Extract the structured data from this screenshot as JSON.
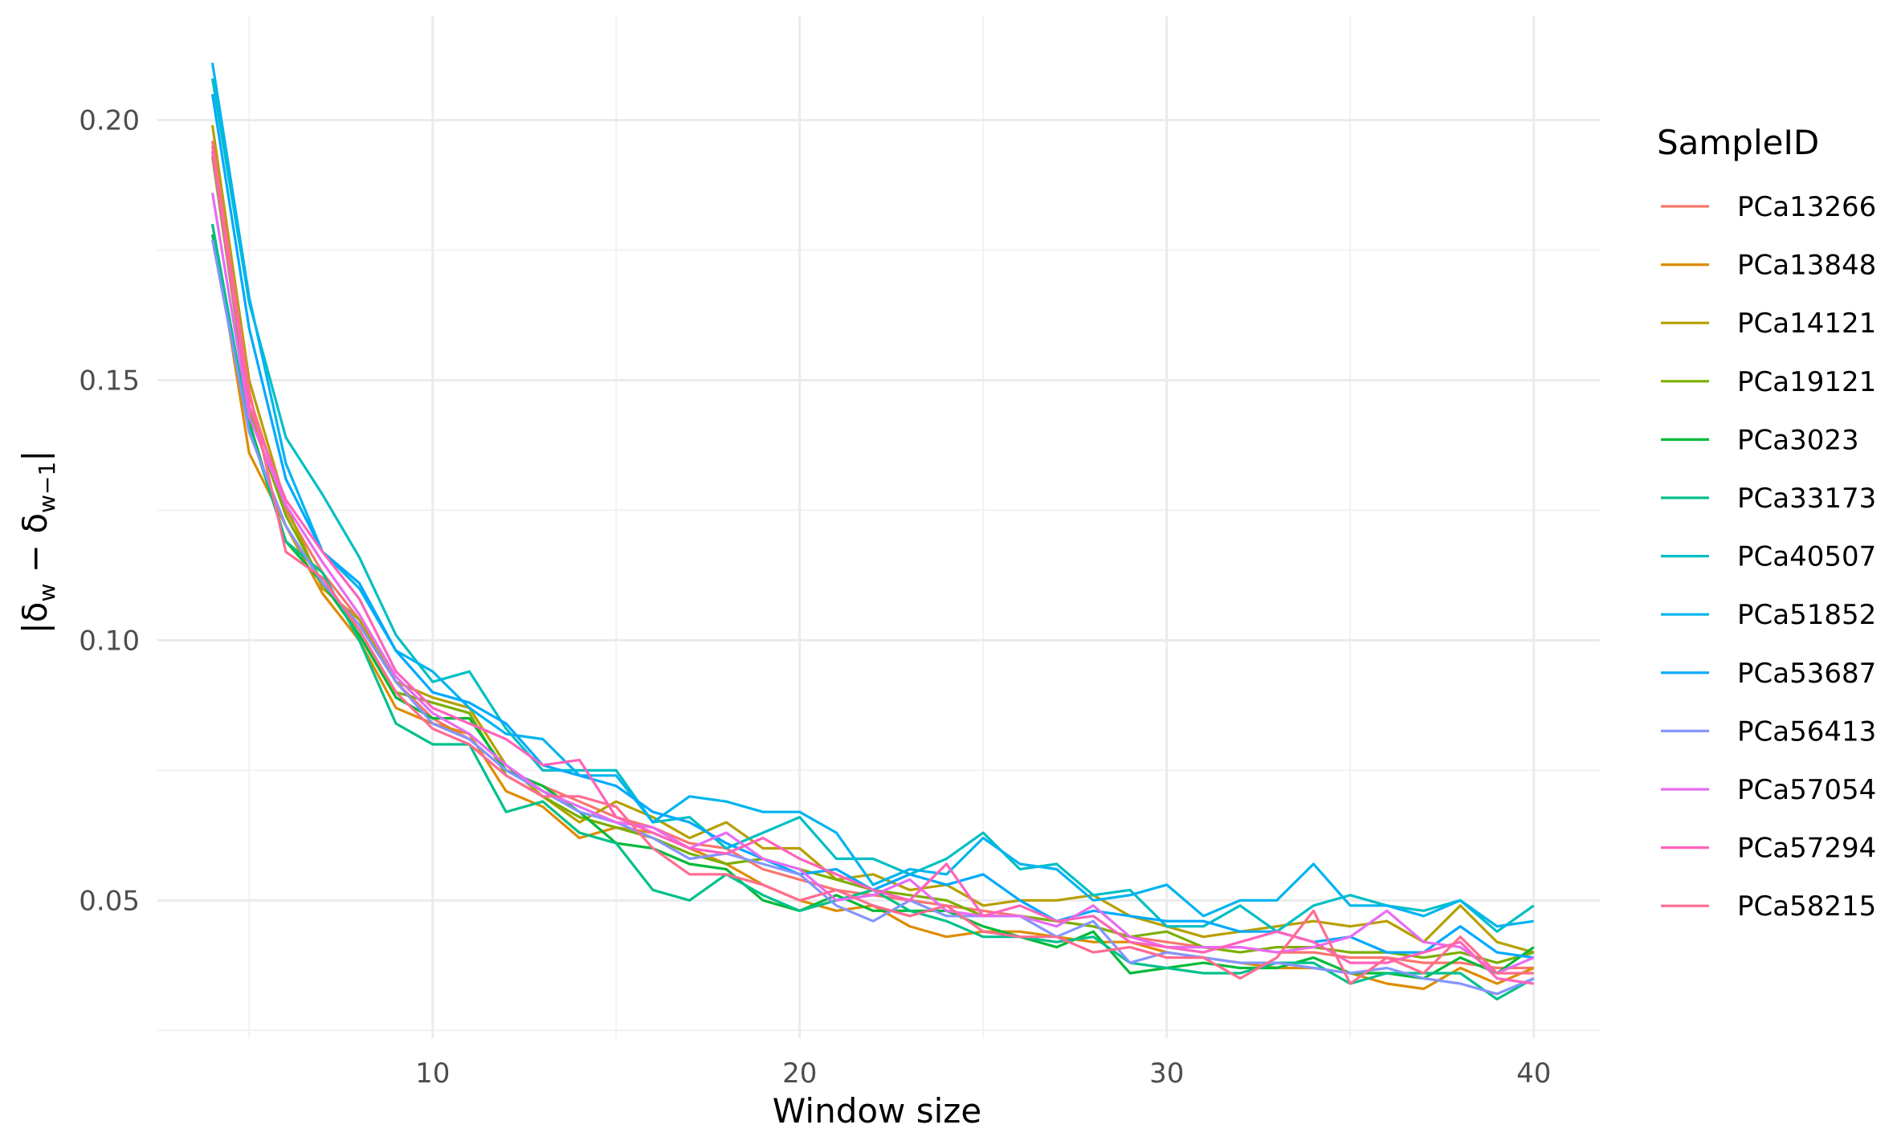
{
  "chart_data": {
    "type": "line",
    "xlabel": "Window size",
    "ylabel": "|δw − δw−1|",
    "ylabel_parts": {
      "open": "|δ",
      "sub1": "w",
      "minus": " − δ",
      "sub2": "w−1",
      "close": "|"
    },
    "xlim": [
      2.5,
      41.8
    ],
    "ylim": [
      0.0235,
      0.22
    ],
    "x_ticks": [
      10,
      20,
      30,
      40
    ],
    "x_tick_labels": [
      "10",
      "20",
      "30",
      "40"
    ],
    "x_minor_ticks": [
      5,
      15,
      25,
      35
    ],
    "y_ticks": [
      0.05,
      0.1,
      0.15,
      0.2
    ],
    "y_tick_labels": [
      "0.05",
      "0.10",
      "0.15",
      "0.20"
    ],
    "y_minor_ticks": [
      0.025,
      0.075,
      0.125,
      0.175
    ],
    "grid": true,
    "legend": {
      "title": "SampleID",
      "position": "right"
    },
    "x": [
      4,
      5,
      6,
      7,
      8,
      9,
      10,
      11,
      12,
      13,
      14,
      15,
      16,
      17,
      18,
      19,
      20,
      21,
      22,
      23,
      24,
      25,
      26,
      27,
      28,
      29,
      30,
      31,
      32,
      33,
      34,
      35,
      36,
      37,
      38,
      39,
      40
    ],
    "series": [
      {
        "name": "PCa13266",
        "color": "#F8766D",
        "values": [
          0.195,
          0.147,
          0.125,
          0.113,
          0.104,
          0.092,
          0.085,
          0.081,
          0.075,
          0.072,
          0.069,
          0.066,
          0.064,
          0.061,
          0.06,
          0.056,
          0.054,
          0.052,
          0.051,
          0.05,
          0.049,
          0.048,
          0.047,
          0.046,
          0.045,
          0.043,
          0.042,
          0.041,
          0.041,
          0.04,
          0.04,
          0.039,
          0.039,
          0.038,
          0.038,
          0.037,
          0.037
        ]
      },
      {
        "name": "PCa13848",
        "color": "#DE8C00",
        "values": [
          0.18,
          0.136,
          0.122,
          0.109,
          0.1,
          0.087,
          0.084,
          0.082,
          0.071,
          0.068,
          0.062,
          0.064,
          0.063,
          0.06,
          0.057,
          0.053,
          0.05,
          0.048,
          0.049,
          0.045,
          0.043,
          0.044,
          0.044,
          0.043,
          0.042,
          0.042,
          0.04,
          0.039,
          0.038,
          0.037,
          0.037,
          0.036,
          0.034,
          0.033,
          0.037,
          0.034,
          0.037
        ]
      },
      {
        "name": "PCa14121",
        "color": "#B79F00",
        "values": [
          0.199,
          0.15,
          0.126,
          0.11,
          0.104,
          0.092,
          0.089,
          0.087,
          0.076,
          0.07,
          0.065,
          0.069,
          0.066,
          0.062,
          0.065,
          0.06,
          0.06,
          0.054,
          0.055,
          0.052,
          0.053,
          0.049,
          0.05,
          0.05,
          0.051,
          0.047,
          0.045,
          0.043,
          0.044,
          0.045,
          0.046,
          0.045,
          0.046,
          0.042,
          0.049,
          0.042,
          0.04
        ]
      },
      {
        "name": "PCa19121",
        "color": "#7CAE00",
        "values": [
          0.193,
          0.144,
          0.124,
          0.111,
          0.102,
          0.09,
          0.088,
          0.086,
          0.074,
          0.07,
          0.066,
          0.064,
          0.062,
          0.059,
          0.057,
          0.058,
          0.056,
          0.054,
          0.052,
          0.051,
          0.05,
          0.047,
          0.047,
          0.046,
          0.045,
          0.043,
          0.044,
          0.041,
          0.04,
          0.041,
          0.041,
          0.04,
          0.04,
          0.039,
          0.04,
          0.038,
          0.04
        ]
      },
      {
        "name": "PCa3023",
        "color": "#00BA38",
        "values": [
          0.178,
          0.142,
          0.119,
          0.111,
          0.101,
          0.089,
          0.085,
          0.085,
          0.075,
          0.072,
          0.067,
          0.061,
          0.06,
          0.057,
          0.056,
          0.05,
          0.048,
          0.051,
          0.048,
          0.048,
          0.048,
          0.045,
          0.043,
          0.041,
          0.044,
          0.036,
          0.037,
          0.038,
          0.037,
          0.037,
          0.039,
          0.036,
          0.036,
          0.035,
          0.039,
          0.036,
          0.041
        ]
      },
      {
        "name": "PCa33173",
        "color": "#00C08B",
        "values": [
          0.18,
          0.141,
          0.119,
          0.113,
          0.1,
          0.084,
          0.08,
          0.08,
          0.067,
          0.069,
          0.063,
          0.061,
          0.052,
          0.05,
          0.055,
          0.051,
          0.048,
          0.05,
          0.052,
          0.048,
          0.046,
          0.043,
          0.043,
          0.042,
          0.043,
          0.038,
          0.037,
          0.036,
          0.036,
          0.038,
          0.038,
          0.034,
          0.036,
          0.036,
          0.036,
          0.031,
          0.035
        ]
      },
      {
        "name": "PCa40507",
        "color": "#00BFC4",
        "values": [
          0.208,
          0.165,
          0.139,
          0.128,
          0.116,
          0.101,
          0.092,
          0.094,
          0.083,
          0.075,
          0.075,
          0.075,
          0.065,
          0.066,
          0.06,
          0.063,
          0.066,
          0.058,
          0.058,
          0.055,
          0.058,
          0.063,
          0.056,
          0.057,
          0.051,
          0.052,
          0.045,
          0.045,
          0.049,
          0.044,
          0.049,
          0.051,
          0.049,
          0.048,
          0.05,
          0.044,
          0.049
        ]
      },
      {
        "name": "PCa51852",
        "color": "#00B4F0",
        "values": [
          0.211,
          0.166,
          0.134,
          0.117,
          0.11,
          0.098,
          0.094,
          0.087,
          0.082,
          0.081,
          0.074,
          0.074,
          0.065,
          0.07,
          0.069,
          0.067,
          0.067,
          0.063,
          0.053,
          0.056,
          0.055,
          0.062,
          0.057,
          0.056,
          0.05,
          0.051,
          0.053,
          0.047,
          0.05,
          0.05,
          0.057,
          0.049,
          0.049,
          0.047,
          0.05,
          0.045,
          0.046
        ]
      },
      {
        "name": "PCa53687",
        "color": "#00A9FF",
        "values": [
          0.205,
          0.16,
          0.131,
          0.117,
          0.111,
          0.098,
          0.09,
          0.088,
          0.084,
          0.076,
          0.074,
          0.072,
          0.067,
          0.065,
          0.061,
          0.058,
          0.055,
          0.056,
          0.052,
          0.055,
          0.053,
          0.055,
          0.05,
          0.046,
          0.048,
          0.047,
          0.046,
          0.046,
          0.044,
          0.044,
          0.042,
          0.043,
          0.04,
          0.04,
          0.045,
          0.04,
          0.039
        ]
      },
      {
        "name": "PCa56413",
        "color": "#8494FF",
        "values": [
          0.177,
          0.14,
          0.122,
          0.111,
          0.103,
          0.092,
          0.084,
          0.081,
          0.075,
          0.071,
          0.067,
          0.065,
          0.062,
          0.058,
          0.059,
          0.057,
          0.055,
          0.049,
          0.046,
          0.05,
          0.047,
          0.047,
          0.047,
          0.043,
          0.046,
          0.038,
          0.04,
          0.039,
          0.038,
          0.038,
          0.037,
          0.036,
          0.037,
          0.035,
          0.034,
          0.032,
          0.035
        ]
      },
      {
        "name": "PCa57054",
        "color": "#E76BF3",
        "values": [
          0.186,
          0.143,
          0.126,
          0.115,
          0.105,
          0.093,
          0.086,
          0.082,
          0.076,
          0.071,
          0.068,
          0.065,
          0.064,
          0.06,
          0.063,
          0.058,
          0.056,
          0.05,
          0.051,
          0.054,
          0.048,
          0.047,
          0.047,
          0.045,
          0.049,
          0.043,
          0.041,
          0.041,
          0.041,
          0.04,
          0.041,
          0.043,
          0.048,
          0.042,
          0.041,
          0.036,
          0.039
        ]
      },
      {
        "name": "PCa57294",
        "color": "#FF62BC",
        "values": [
          0.194,
          0.145,
          0.127,
          0.117,
          0.108,
          0.094,
          0.087,
          0.084,
          0.081,
          0.076,
          0.077,
          0.066,
          0.063,
          0.06,
          0.059,
          0.062,
          0.058,
          0.055,
          0.052,
          0.05,
          0.057,
          0.047,
          0.049,
          0.046,
          0.047,
          0.042,
          0.041,
          0.04,
          0.042,
          0.044,
          0.042,
          0.038,
          0.038,
          0.04,
          0.042,
          0.035,
          0.034
        ]
      },
      {
        "name": "PCa58215",
        "color": "#FF6C91",
        "values": [
          0.196,
          0.148,
          0.117,
          0.112,
          0.102,
          0.09,
          0.083,
          0.08,
          0.074,
          0.07,
          0.07,
          0.068,
          0.06,
          0.055,
          0.055,
          0.053,
          0.05,
          0.052,
          0.049,
          0.047,
          0.049,
          0.044,
          0.043,
          0.043,
          0.04,
          0.041,
          0.039,
          0.039,
          0.035,
          0.039,
          0.048,
          0.034,
          0.039,
          0.036,
          0.043,
          0.036,
          0.036
        ]
      }
    ]
  }
}
